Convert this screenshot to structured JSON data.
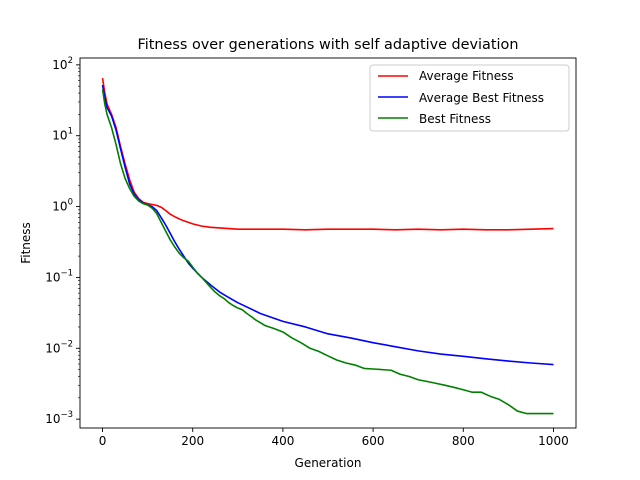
{
  "chart_data": {
    "type": "line",
    "title": "Fitness over generations with self adaptive deviation",
    "xlabel": "Generation",
    "ylabel": "Fitness",
    "xscale": "linear",
    "yscale": "log",
    "xlim": [
      -50,
      1050
    ],
    "ylim": [
      0.00075,
      125
    ],
    "xticks": [
      0,
      200,
      400,
      600,
      800,
      1000
    ],
    "yticks": [
      {
        "value": 0.001,
        "base": "10",
        "exp": "−3"
      },
      {
        "value": 0.01,
        "base": "10",
        "exp": "−2"
      },
      {
        "value": 0.1,
        "base": "10",
        "exp": "−1"
      },
      {
        "value": 1,
        "base": "10",
        "exp": "0"
      },
      {
        "value": 10,
        "base": "10",
        "exp": "1"
      },
      {
        "value": 100,
        "base": "10",
        "exp": "2"
      }
    ],
    "grid": false,
    "legend": "top-right",
    "series": [
      {
        "name": "Average Fitness",
        "color": "#ff0000",
        "x": [
          0,
          5,
          10,
          20,
          30,
          40,
          50,
          60,
          70,
          80,
          90,
          100,
          110,
          120,
          130,
          140,
          150,
          160,
          170,
          180,
          190,
          200,
          220,
          240,
          260,
          280,
          300,
          350,
          400,
          450,
          500,
          550,
          600,
          650,
          700,
          750,
          800,
          850,
          900,
          950,
          1000
        ],
        "y": [
          65,
          40,
          28,
          20,
          13,
          7,
          4,
          2.4,
          1.6,
          1.3,
          1.15,
          1.1,
          1.07,
          1.04,
          0.98,
          0.88,
          0.78,
          0.72,
          0.67,
          0.63,
          0.6,
          0.57,
          0.53,
          0.51,
          0.5,
          0.49,
          0.48,
          0.48,
          0.48,
          0.47,
          0.48,
          0.48,
          0.48,
          0.47,
          0.48,
          0.47,
          0.48,
          0.47,
          0.47,
          0.48,
          0.49
        ]
      },
      {
        "name": "Average Best Fitness",
        "color": "#0000ff",
        "x": [
          0,
          5,
          10,
          20,
          30,
          40,
          50,
          60,
          70,
          80,
          90,
          100,
          110,
          120,
          130,
          140,
          150,
          160,
          170,
          180,
          190,
          200,
          220,
          240,
          260,
          280,
          300,
          350,
          400,
          450,
          500,
          550,
          600,
          650,
          700,
          750,
          800,
          850,
          900,
          950,
          1000
        ],
        "y": [
          52,
          35,
          25,
          19,
          12,
          6.5,
          3.6,
          2.1,
          1.5,
          1.25,
          1.12,
          1.06,
          1.0,
          0.88,
          0.7,
          0.55,
          0.42,
          0.32,
          0.25,
          0.2,
          0.16,
          0.135,
          0.1,
          0.078,
          0.062,
          0.052,
          0.044,
          0.031,
          0.024,
          0.02,
          0.016,
          0.014,
          0.012,
          0.0105,
          0.0092,
          0.0083,
          0.0077,
          0.0071,
          0.0066,
          0.0062,
          0.0059
        ]
      },
      {
        "name": "Best Fitness",
        "color": "#008000",
        "x": [
          0,
          5,
          10,
          20,
          30,
          40,
          50,
          60,
          70,
          80,
          90,
          100,
          110,
          120,
          130,
          140,
          150,
          160,
          170,
          180,
          190,
          200,
          210,
          220,
          230,
          240,
          250,
          260,
          270,
          280,
          290,
          300,
          310,
          320,
          330,
          340,
          350,
          360,
          380,
          400,
          420,
          440,
          460,
          480,
          500,
          520,
          540,
          560,
          580,
          600,
          620,
          640,
          660,
          680,
          700,
          720,
          740,
          760,
          780,
          800,
          820,
          840,
          860,
          880,
          900,
          920,
          940,
          960,
          980,
          1000
        ],
        "y": [
          45,
          28,
          20,
          13,
          7.5,
          4,
          2.5,
          1.8,
          1.4,
          1.2,
          1.1,
          1.05,
          0.95,
          0.8,
          0.6,
          0.45,
          0.34,
          0.27,
          0.22,
          0.19,
          0.17,
          0.14,
          0.115,
          0.1,
          0.085,
          0.072,
          0.062,
          0.055,
          0.05,
          0.044,
          0.04,
          0.037,
          0.035,
          0.031,
          0.028,
          0.025,
          0.023,
          0.021,
          0.019,
          0.017,
          0.014,
          0.012,
          0.01,
          0.009,
          0.0078,
          0.0068,
          0.0062,
          0.0058,
          0.0052,
          0.0051,
          0.005,
          0.0049,
          0.0043,
          0.004,
          0.0036,
          0.0034,
          0.0032,
          0.003,
          0.0028,
          0.0026,
          0.0024,
          0.0024,
          0.0021,
          0.0019,
          0.0016,
          0.0013,
          0.0012,
          0.0012,
          0.0012,
          0.0012
        ]
      }
    ]
  }
}
